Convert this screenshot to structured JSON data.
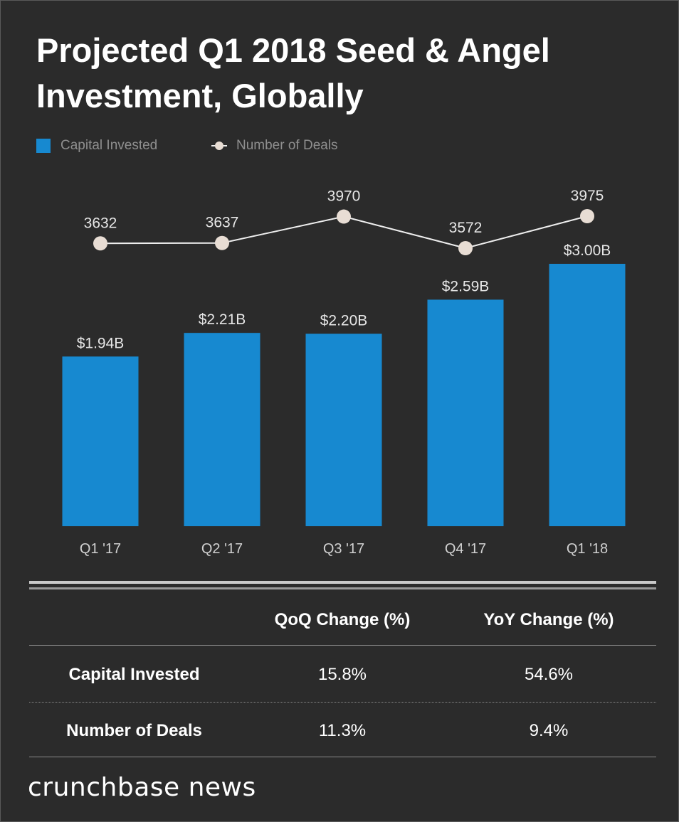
{
  "title": "Projected Q1 2018 Seed & Angel Investment, Globally",
  "legend": {
    "bar_label": "Capital Invested",
    "line_label": "Number of Deals"
  },
  "colors": {
    "background": "#2b2b2b",
    "bar": "#1789d0",
    "line": "#eeeeee",
    "dot": "#e8ddd4",
    "text": "#ffffff",
    "label": "#e6e6e6",
    "muted": "#8f8f8f"
  },
  "chart_data": {
    "type": "bar",
    "title": "Projected Q1 2018 Seed & Angel Investment, Globally",
    "categories": [
      "Q1 '17",
      "Q2 '17",
      "Q3 '17",
      "Q4 '17",
      "Q1 '18"
    ],
    "series": [
      {
        "name": "Capital Invested",
        "type": "bar",
        "values": [
          1.94,
          2.21,
          2.2,
          2.59,
          3.0
        ],
        "labels": [
          "$1.94B",
          "$2.21B",
          "$2.20B",
          "$2.59B",
          "$3.00B"
        ]
      },
      {
        "name": "Number of Deals",
        "type": "line",
        "values": [
          3632,
          3637,
          3970,
          3572,
          3975
        ],
        "labels": [
          "3632",
          "3637",
          "3970",
          "3572",
          "3975"
        ]
      }
    ],
    "xlabel": "",
    "ylabel": "",
    "ylim": [
      0,
      3.0
    ],
    "grid": false,
    "legend": "top-left"
  },
  "table": {
    "headers": [
      "",
      "QoQ Change (%)",
      "YoY Change (%)"
    ],
    "rows": [
      {
        "label": "Capital Invested",
        "qoq": "15.8%",
        "yoy": "54.6%"
      },
      {
        "label": "Number of Deals",
        "qoq": "11.3%",
        "yoy": "9.4%"
      }
    ]
  },
  "brand": "crunchbase news"
}
